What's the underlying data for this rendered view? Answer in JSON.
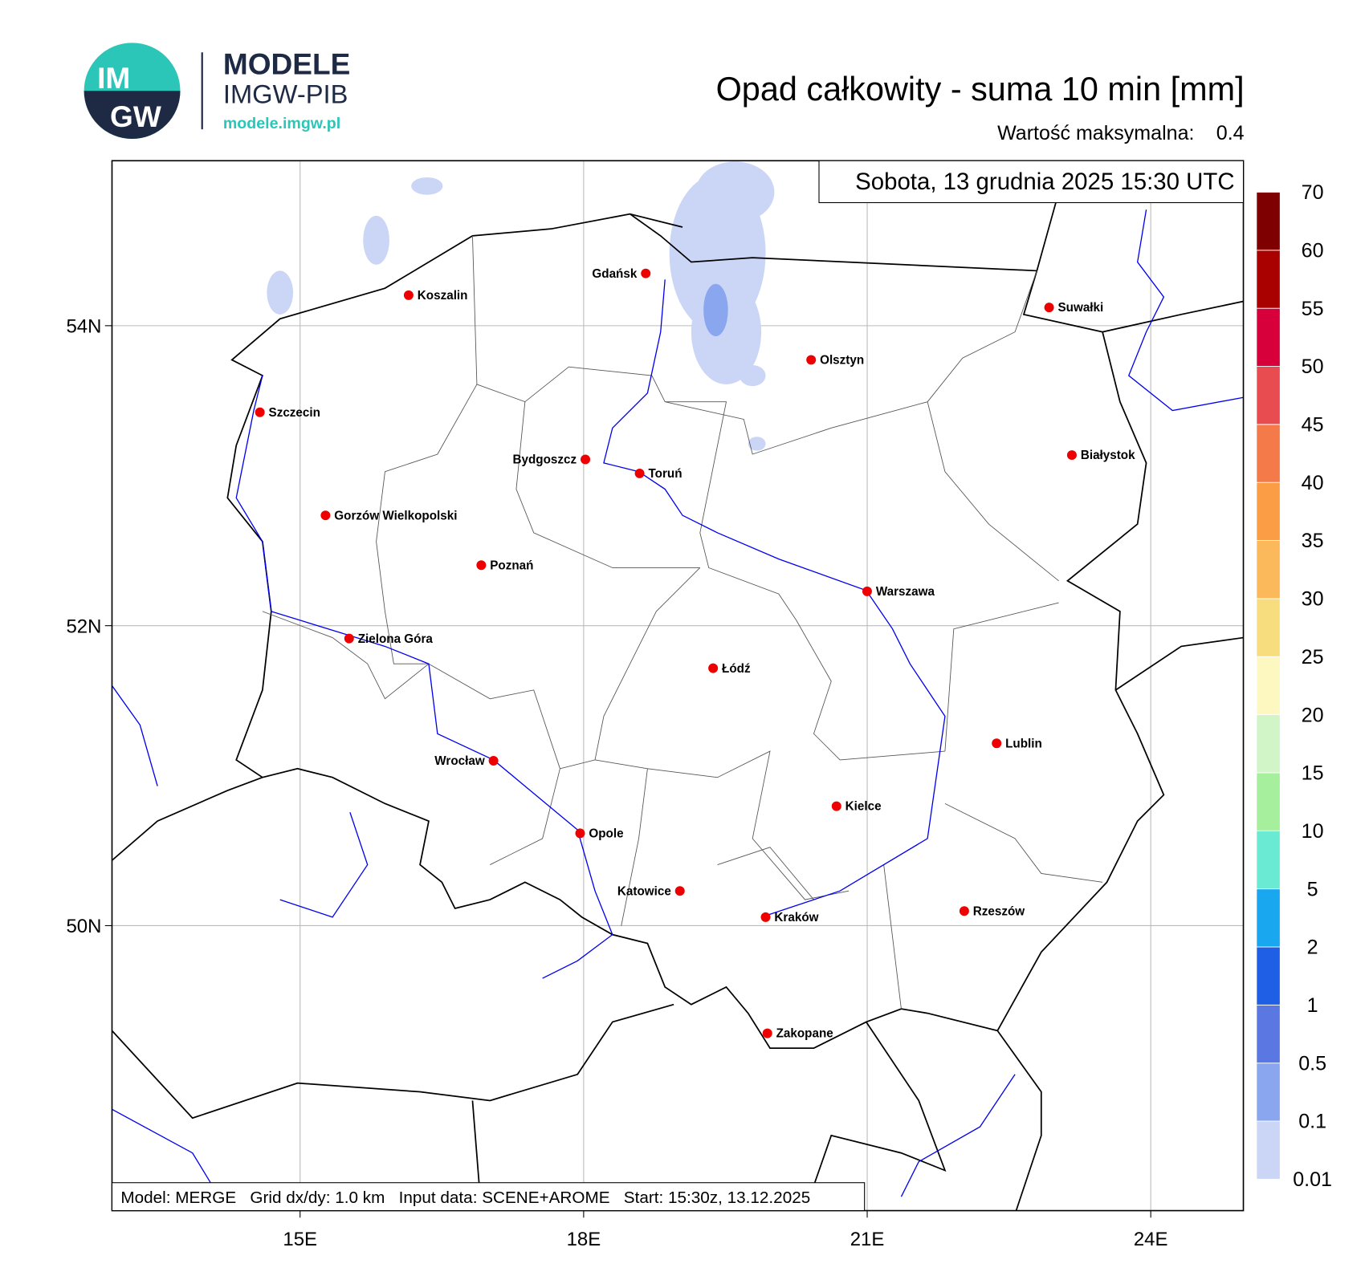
{
  "logo": {
    "badge_top": "IM",
    "badge_bottom": "GW",
    "name": "MODELE",
    "org": "IMGW-PIB",
    "url": "modele.imgw.pl"
  },
  "header": {
    "title": "Opad całkowity - suma 10 min [mm]",
    "max_label": "Wartość maksymalna:",
    "max_value": 0.4,
    "valid_time": "Sobota, 13 grudnia 2025 15:30 UTC"
  },
  "map": {
    "xlim": [
      13.01,
      24.98
    ],
    "ylim": [
      48.1,
      55.1
    ],
    "grid": true,
    "lat_ticks": [
      {
        "value": 54,
        "label": "54N"
      },
      {
        "value": 52,
        "label": "52N"
      },
      {
        "value": 50,
        "label": "50N"
      }
    ],
    "lon_ticks": [
      {
        "value": 15,
        "label": "15E"
      },
      {
        "value": 18,
        "label": "18E"
      },
      {
        "value": 21,
        "label": "21E"
      },
      {
        "value": 24,
        "label": "24E"
      }
    ],
    "cities": [
      "Gdańsk",
      "Koszalin",
      "Suwałki",
      "Olsztyn",
      "Szczecin",
      "Białystok",
      "Bydgoszcz",
      "Toruń",
      "Gorzów Wielkopolski",
      "Poznań",
      "Warszawa",
      "Zielona Góra",
      "Łódź",
      "Lublin",
      "Wrocław",
      "Kielce",
      "Opole",
      "Katowice",
      "Rzeszów",
      "Kraków",
      "Zakopane"
    ],
    "footer": "Model: MERGE   Grid dx/dy: 1.0 km   Input data: SCENE+AROME   Start: 15:30z, 13.12.2025"
  },
  "colorbar": {
    "levels": [
      0.01,
      0.1,
      0.5,
      1,
      2,
      5,
      10,
      15,
      20,
      25,
      30,
      35,
      40,
      45,
      50,
      55,
      60,
      70
    ],
    "colors": [
      "#cbd6f6",
      "#8aa6ef",
      "#5a77e2",
      "#1f5fe6",
      "#19a8f0",
      "#6ae9d3",
      "#a6ef9c",
      "#d2f5c8",
      "#fcf8c0",
      "#f8dd7e",
      "#fcb95b",
      "#fb9d45",
      "#f47a4a",
      "#e84c50",
      "#d7003b",
      "#a90000",
      "#7f0000"
    ]
  }
}
